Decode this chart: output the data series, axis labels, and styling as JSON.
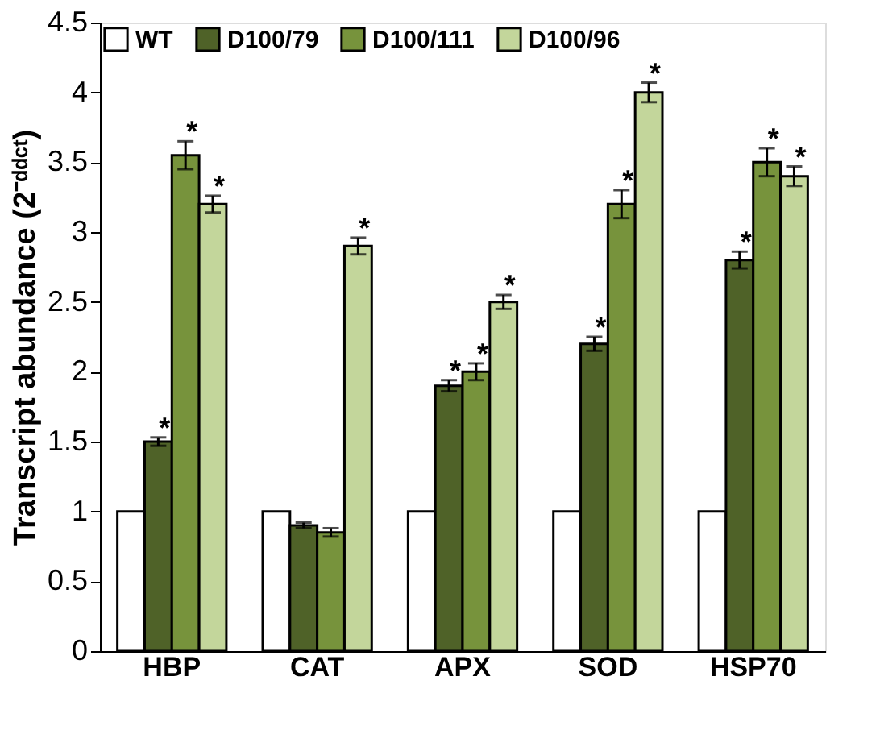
{
  "chart_data": {
    "type": "bar",
    "ylabel": "Transcript abundance (2⁻ᵈᵈᶜᵗ)",
    "categories": [
      "HBP",
      "CAT",
      "APX",
      "SOD",
      "HSP70"
    ],
    "series": [
      {
        "name": "WT",
        "color": "#ffffff",
        "values": [
          1,
          1,
          1,
          1,
          1
        ],
        "errors": [
          null,
          null,
          null,
          null,
          null
        ],
        "value_labels": [
          null,
          null,
          null,
          null,
          null
        ]
      },
      {
        "name": "D100/79",
        "color": "#4f6228",
        "values": [
          1.5,
          0.9,
          1.9,
          2.2,
          2.8
        ],
        "errors": [
          0.03,
          0.02,
          0.04,
          0.05,
          0.06
        ],
        "value_labels": [
          "*",
          null,
          "*",
          "*",
          "*"
        ]
      },
      {
        "name": "D100/111",
        "color": "#77933c",
        "values": [
          3.55,
          0.85,
          2.0,
          3.2,
          3.5
        ],
        "errors": [
          0.1,
          0.03,
          0.06,
          0.1,
          0.1
        ],
        "value_labels": [
          "*",
          null,
          "*",
          "*",
          "*"
        ]
      },
      {
        "name": "D100/96",
        "color": "#c3d69b",
        "values": [
          3.2,
          2.9,
          2.5,
          4.0,
          3.4
        ],
        "errors": [
          0.06,
          0.06,
          0.05,
          0.07,
          0.07
        ],
        "value_labels": [
          "*",
          "*",
          "*",
          "*",
          "*"
        ]
      }
    ],
    "ylim": [
      0,
      4.5
    ],
    "yticks": [
      {
        "value": 0,
        "label": "0"
      },
      0.5,
      {
        "value": 1,
        "label": "1"
      },
      1.5,
      {
        "value": 2,
        "label": "2"
      },
      2.5,
      {
        "value": 3,
        "label": "3"
      },
      3.5,
      {
        "value": 4,
        "label": "4"
      },
      4.5
    ],
    "grid": false,
    "legend": "top left"
  }
}
